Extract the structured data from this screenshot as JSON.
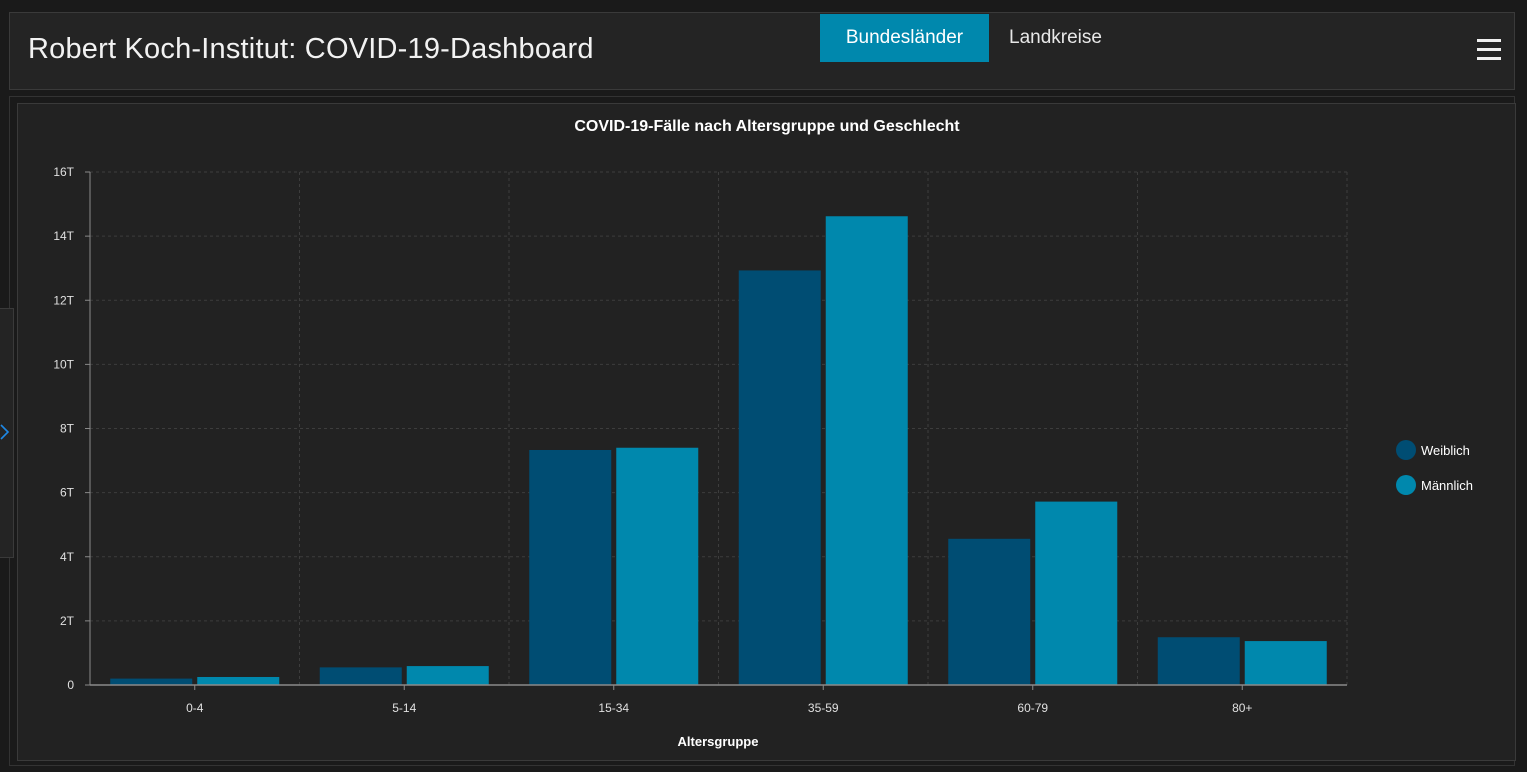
{
  "header": {
    "title": "Robert Koch-Institut: COVID-19-Dashboard",
    "tabs": [
      {
        "label": "Bundesländer",
        "active": true
      },
      {
        "label": "Landkreise",
        "active": false
      }
    ]
  },
  "colors": {
    "accent": "#0088ad",
    "series_weiblich": "#004d73",
    "series_maennlich": "#0088ad"
  },
  "chart_data": {
    "type": "bar",
    "title": "COVID-19-Fälle nach Altersgruppe und Geschlecht",
    "xlabel": "Altersgruppe",
    "ylabel": "",
    "categories": [
      "0-4",
      "5-14",
      "15-34",
      "35-59",
      "60-79",
      "80+"
    ],
    "series": [
      {
        "name": "Weiblich",
        "values": [
          200,
          550,
          7330,
          12930,
          4560,
          1490
        ]
      },
      {
        "name": "Männlich",
        "values": [
          250,
          590,
          7400,
          14620,
          5720,
          1370
        ]
      }
    ],
    "ylim": [
      0,
      16000
    ],
    "yticks": [
      {
        "value": 0,
        "label": "0"
      },
      {
        "value": 2000,
        "label": "2T"
      },
      {
        "value": 4000,
        "label": "4T"
      },
      {
        "value": 6000,
        "label": "6T"
      },
      {
        "value": 8000,
        "label": "8T"
      },
      {
        "value": 10000,
        "label": "10T"
      },
      {
        "value": 12000,
        "label": "12T"
      },
      {
        "value": 14000,
        "label": "14T"
      },
      {
        "value": 16000,
        "label": "16T"
      }
    ],
    "grid": true,
    "legend_position": "right"
  }
}
